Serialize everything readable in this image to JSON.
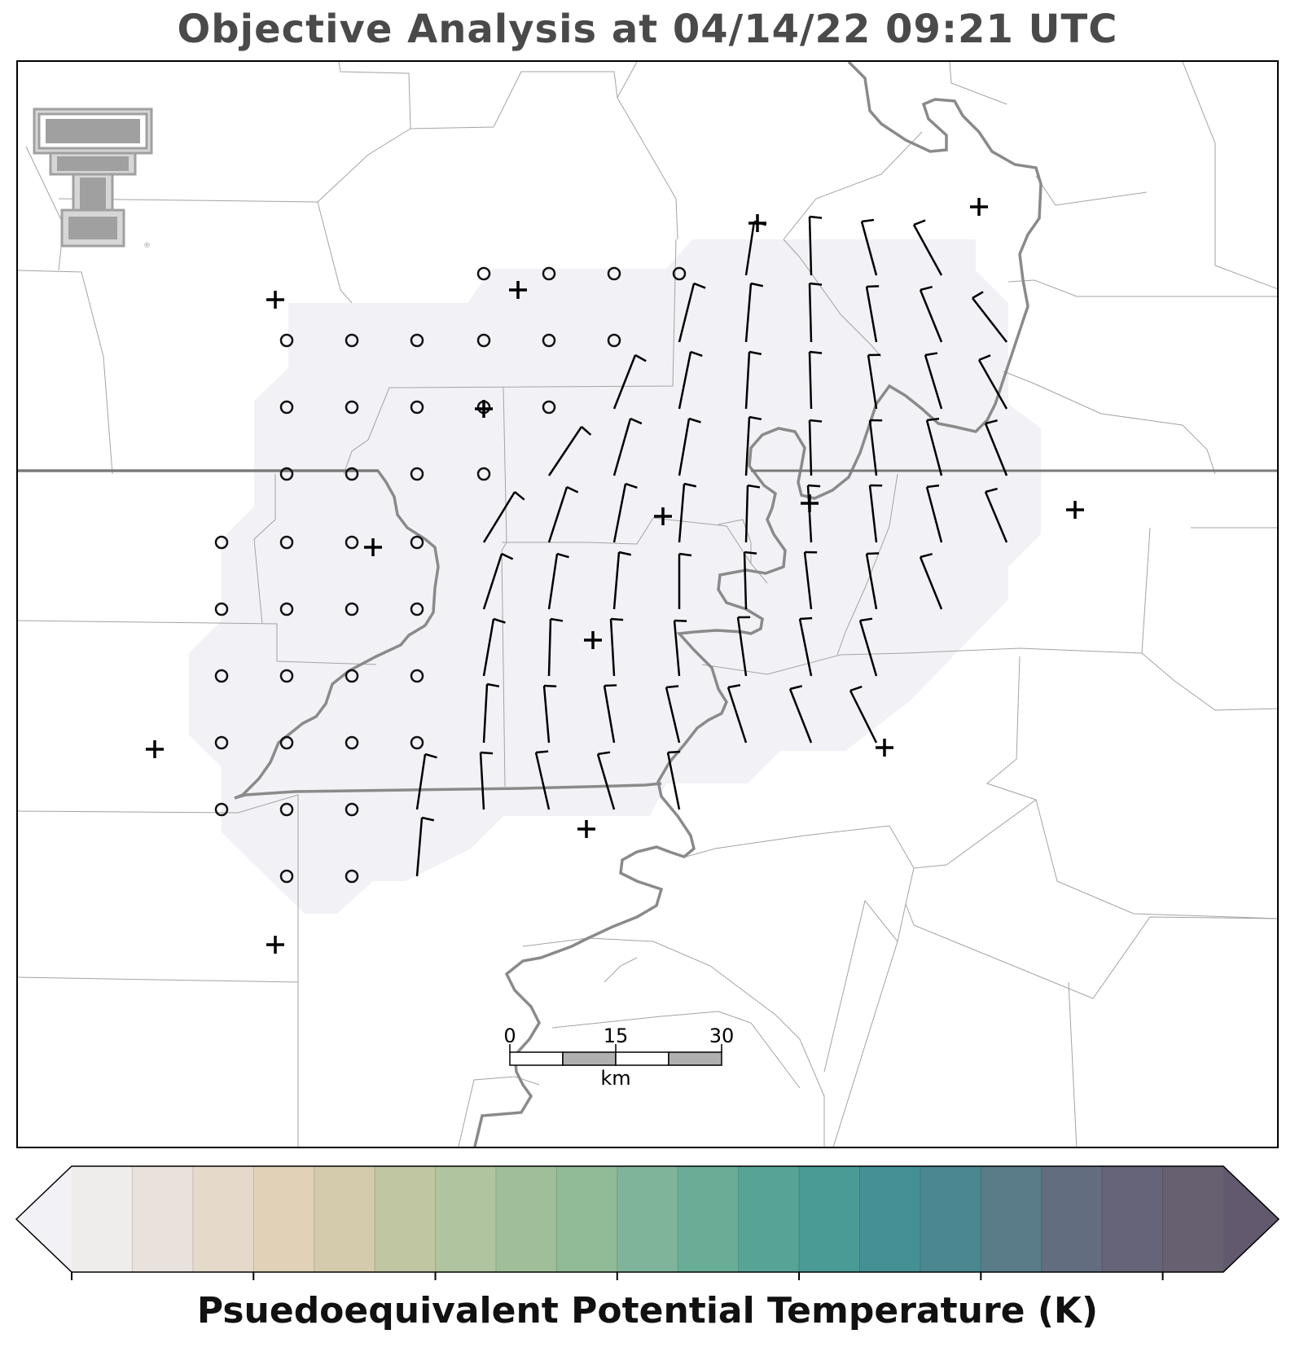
{
  "title": "Objective Analysis at 04/14/22 09:21 UTC",
  "logo": {
    "name": "texas-tech-double-t-logo",
    "color": "#a0a0a0"
  },
  "scale_bar": {
    "ticks": [
      "0",
      "15",
      "30"
    ],
    "unit": "km"
  },
  "colorbar": {
    "label": "Psuedoequivalent Potential Temperature (K)",
    "ticks": [
      "310",
      "316",
      "322",
      "328",
      "334",
      "340",
      "346"
    ],
    "colors": [
      "#f2f1f6",
      "#efecec",
      "#e9e2dc",
      "#e5d9c9",
      "#e1d1b7",
      "#d3cbac",
      "#c0c6a2",
      "#b0c4a0",
      "#a0bf99",
      "#91ba97",
      "#80b49a",
      "#6aad97",
      "#57a497",
      "#4a9a96",
      "#449094",
      "#4b8790",
      "#597c88",
      "#626d80",
      "#666478",
      "#676070",
      "#62596e"
    ],
    "extend": "both"
  },
  "analysis_fill_color": "#f2f1f6",
  "wind_barbs_note": "",
  "chart_data": {
    "type": "map",
    "variable": "Psuedoequivalent Potential Temperature (K)",
    "analysis_value_k": "below 310",
    "calm_grid_points": 37,
    "wind_barb_points": 69,
    "station_markers": 13
  }
}
